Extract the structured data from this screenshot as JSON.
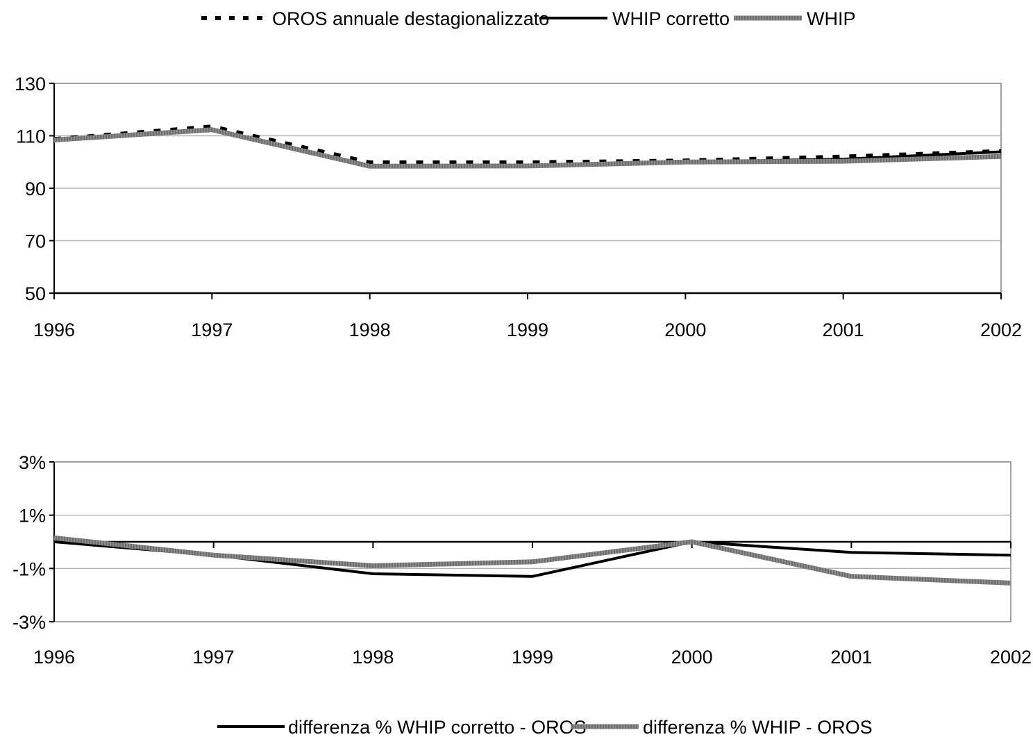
{
  "chart_data": [
    {
      "type": "line",
      "x": [
        "1996",
        "1997",
        "1998",
        "1999",
        "2000",
        "2001",
        "2002"
      ],
      "ylim": [
        50,
        130
      ],
      "yticks": [
        "50",
        "70",
        "90",
        "110",
        "130"
      ],
      "grid": true,
      "legend": "top-center",
      "series": [
        {
          "name": "OROS annuale destagionalizzato",
          "style": "dashed",
          "color": "#000000",
          "values": [
            108.2,
            113.0,
            99.3,
            99.3,
            100.0,
            101.5,
            103.6
          ]
        },
        {
          "name": "WHIP corretto",
          "style": "solid",
          "color": "#000000",
          "values": [
            108.2,
            112.6,
            98.2,
            98.2,
            100.0,
            101.1,
            103.9
          ]
        },
        {
          "name": "WHIP",
          "style": "thick-gray",
          "color": "#7f7f7f",
          "values": [
            108.4,
            112.3,
            98.4,
            98.5,
            100.0,
            100.3,
            102.1
          ]
        }
      ]
    },
    {
      "type": "line",
      "x": [
        "1996",
        "1997",
        "1998",
        "1999",
        "2000",
        "2001",
        "2002"
      ],
      "ylim": [
        -3,
        3
      ],
      "yticks": [
        "-3%",
        "-1%",
        "1%",
        "3%"
      ],
      "grid": true,
      "legend": "bottom-center",
      "series": [
        {
          "name": "differenza % WHIP corretto - OROS",
          "style": "solid",
          "color": "#000000",
          "values": [
            0.0,
            -0.5,
            -1.2,
            -1.3,
            0.0,
            -0.4,
            -0.5
          ]
        },
        {
          "name": "differenza % WHIP - OROS",
          "style": "thick-gray",
          "color": "#7f7f7f",
          "values": [
            0.15,
            -0.5,
            -0.9,
            -0.75,
            0.0,
            -1.3,
            -1.55
          ]
        }
      ]
    }
  ]
}
